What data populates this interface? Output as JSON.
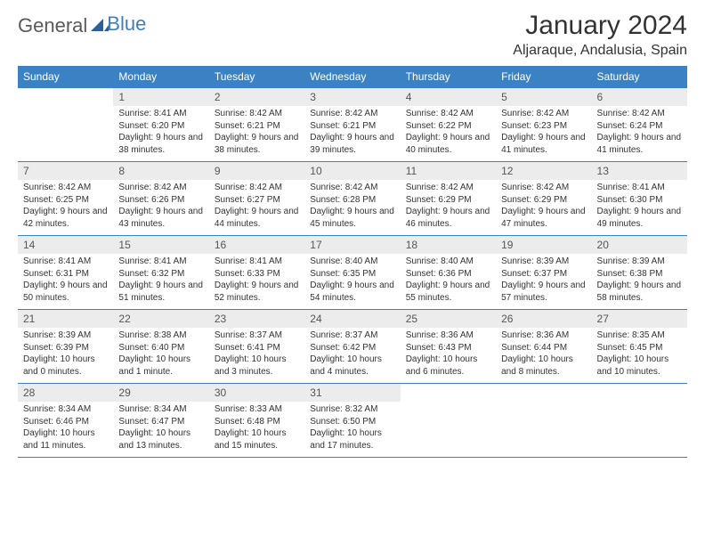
{
  "logo": {
    "text1": "General",
    "text2": "Blue"
  },
  "title": "January 2024",
  "location": "Aljaraque, Andalusia, Spain",
  "colors": {
    "header_bg": "#3b82c4",
    "header_text": "#ffffff",
    "daynum_bg": "#ececec",
    "border": "#3b82c4",
    "logo_gray": "#5a5a5a",
    "logo_blue": "#3b7fc4"
  },
  "dayNames": [
    "Sunday",
    "Monday",
    "Tuesday",
    "Wednesday",
    "Thursday",
    "Friday",
    "Saturday"
  ],
  "weeks": [
    [
      {
        "n": "",
        "sr": "",
        "ss": "",
        "dl": ""
      },
      {
        "n": "1",
        "sr": "Sunrise: 8:41 AM",
        "ss": "Sunset: 6:20 PM",
        "dl": "Daylight: 9 hours and 38 minutes."
      },
      {
        "n": "2",
        "sr": "Sunrise: 8:42 AM",
        "ss": "Sunset: 6:21 PM",
        "dl": "Daylight: 9 hours and 38 minutes."
      },
      {
        "n": "3",
        "sr": "Sunrise: 8:42 AM",
        "ss": "Sunset: 6:21 PM",
        "dl": "Daylight: 9 hours and 39 minutes."
      },
      {
        "n": "4",
        "sr": "Sunrise: 8:42 AM",
        "ss": "Sunset: 6:22 PM",
        "dl": "Daylight: 9 hours and 40 minutes."
      },
      {
        "n": "5",
        "sr": "Sunrise: 8:42 AM",
        "ss": "Sunset: 6:23 PM",
        "dl": "Daylight: 9 hours and 41 minutes."
      },
      {
        "n": "6",
        "sr": "Sunrise: 8:42 AM",
        "ss": "Sunset: 6:24 PM",
        "dl": "Daylight: 9 hours and 41 minutes."
      }
    ],
    [
      {
        "n": "7",
        "sr": "Sunrise: 8:42 AM",
        "ss": "Sunset: 6:25 PM",
        "dl": "Daylight: 9 hours and 42 minutes."
      },
      {
        "n": "8",
        "sr": "Sunrise: 8:42 AM",
        "ss": "Sunset: 6:26 PM",
        "dl": "Daylight: 9 hours and 43 minutes."
      },
      {
        "n": "9",
        "sr": "Sunrise: 8:42 AM",
        "ss": "Sunset: 6:27 PM",
        "dl": "Daylight: 9 hours and 44 minutes."
      },
      {
        "n": "10",
        "sr": "Sunrise: 8:42 AM",
        "ss": "Sunset: 6:28 PM",
        "dl": "Daylight: 9 hours and 45 minutes."
      },
      {
        "n": "11",
        "sr": "Sunrise: 8:42 AM",
        "ss": "Sunset: 6:29 PM",
        "dl": "Daylight: 9 hours and 46 minutes."
      },
      {
        "n": "12",
        "sr": "Sunrise: 8:42 AM",
        "ss": "Sunset: 6:29 PM",
        "dl": "Daylight: 9 hours and 47 minutes."
      },
      {
        "n": "13",
        "sr": "Sunrise: 8:41 AM",
        "ss": "Sunset: 6:30 PM",
        "dl": "Daylight: 9 hours and 49 minutes."
      }
    ],
    [
      {
        "n": "14",
        "sr": "Sunrise: 8:41 AM",
        "ss": "Sunset: 6:31 PM",
        "dl": "Daylight: 9 hours and 50 minutes."
      },
      {
        "n": "15",
        "sr": "Sunrise: 8:41 AM",
        "ss": "Sunset: 6:32 PM",
        "dl": "Daylight: 9 hours and 51 minutes."
      },
      {
        "n": "16",
        "sr": "Sunrise: 8:41 AM",
        "ss": "Sunset: 6:33 PM",
        "dl": "Daylight: 9 hours and 52 minutes."
      },
      {
        "n": "17",
        "sr": "Sunrise: 8:40 AM",
        "ss": "Sunset: 6:35 PM",
        "dl": "Daylight: 9 hours and 54 minutes."
      },
      {
        "n": "18",
        "sr": "Sunrise: 8:40 AM",
        "ss": "Sunset: 6:36 PM",
        "dl": "Daylight: 9 hours and 55 minutes."
      },
      {
        "n": "19",
        "sr": "Sunrise: 8:39 AM",
        "ss": "Sunset: 6:37 PM",
        "dl": "Daylight: 9 hours and 57 minutes."
      },
      {
        "n": "20",
        "sr": "Sunrise: 8:39 AM",
        "ss": "Sunset: 6:38 PM",
        "dl": "Daylight: 9 hours and 58 minutes."
      }
    ],
    [
      {
        "n": "21",
        "sr": "Sunrise: 8:39 AM",
        "ss": "Sunset: 6:39 PM",
        "dl": "Daylight: 10 hours and 0 minutes."
      },
      {
        "n": "22",
        "sr": "Sunrise: 8:38 AM",
        "ss": "Sunset: 6:40 PM",
        "dl": "Daylight: 10 hours and 1 minute."
      },
      {
        "n": "23",
        "sr": "Sunrise: 8:37 AM",
        "ss": "Sunset: 6:41 PM",
        "dl": "Daylight: 10 hours and 3 minutes."
      },
      {
        "n": "24",
        "sr": "Sunrise: 8:37 AM",
        "ss": "Sunset: 6:42 PM",
        "dl": "Daylight: 10 hours and 4 minutes."
      },
      {
        "n": "25",
        "sr": "Sunrise: 8:36 AM",
        "ss": "Sunset: 6:43 PM",
        "dl": "Daylight: 10 hours and 6 minutes."
      },
      {
        "n": "26",
        "sr": "Sunrise: 8:36 AM",
        "ss": "Sunset: 6:44 PM",
        "dl": "Daylight: 10 hours and 8 minutes."
      },
      {
        "n": "27",
        "sr": "Sunrise: 8:35 AM",
        "ss": "Sunset: 6:45 PM",
        "dl": "Daylight: 10 hours and 10 minutes."
      }
    ],
    [
      {
        "n": "28",
        "sr": "Sunrise: 8:34 AM",
        "ss": "Sunset: 6:46 PM",
        "dl": "Daylight: 10 hours and 11 minutes."
      },
      {
        "n": "29",
        "sr": "Sunrise: 8:34 AM",
        "ss": "Sunset: 6:47 PM",
        "dl": "Daylight: 10 hours and 13 minutes."
      },
      {
        "n": "30",
        "sr": "Sunrise: 8:33 AM",
        "ss": "Sunset: 6:48 PM",
        "dl": "Daylight: 10 hours and 15 minutes."
      },
      {
        "n": "31",
        "sr": "Sunrise: 8:32 AM",
        "ss": "Sunset: 6:50 PM",
        "dl": "Daylight: 10 hours and 17 minutes."
      },
      {
        "n": "",
        "sr": "",
        "ss": "",
        "dl": ""
      },
      {
        "n": "",
        "sr": "",
        "ss": "",
        "dl": ""
      },
      {
        "n": "",
        "sr": "",
        "ss": "",
        "dl": ""
      }
    ]
  ]
}
